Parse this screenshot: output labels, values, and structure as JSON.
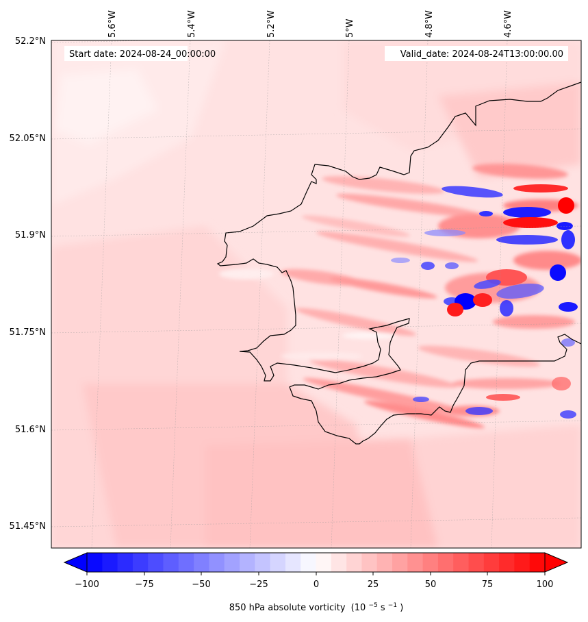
{
  "header": {
    "start_label": "Start date: 2024-08-24_00:00:00",
    "valid_label": "Valid_date: 2024-08-24T13:00:00.00"
  },
  "map": {
    "lon_labels": [
      "5.6°W",
      "5.4°W",
      "5.2°W",
      "5°W",
      "4.8°W",
      "4.6°W"
    ],
    "lat_labels": [
      "52.2°N",
      "52.05°N",
      "51.9°N",
      "51.75°N",
      "51.6°N",
      "51.45°N"
    ],
    "field": "850 hPa absolute vorticity",
    "colormap": "bwr",
    "coastline_color": "#000000",
    "gridlines": true
  },
  "colorbar": {
    "ticks": [
      "−100",
      "−75",
      "−50",
      "−25",
      "0",
      "25",
      "50",
      "75",
      "100"
    ],
    "min": -100,
    "max": 100,
    "levels": 31,
    "extend": "both",
    "title": "850 hPa absolute vorticity",
    "units_text": "(10",
    "units_exp1": "−5",
    "units_mid": "s",
    "units_exp2": "−1",
    "units_close": ")"
  }
}
